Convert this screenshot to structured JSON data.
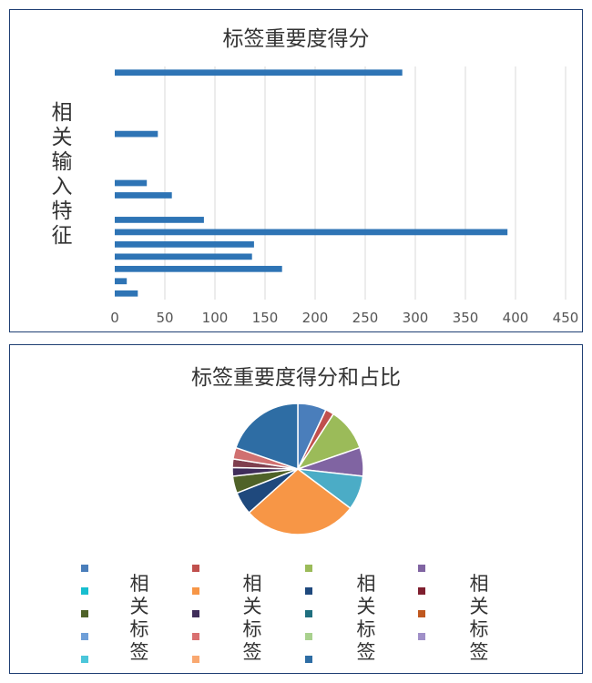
{
  "chart_data": [
    {
      "type": "bar",
      "orientation": "horizontal",
      "title": "标签重要度得分",
      "ylabel_chars": [
        "相",
        "关",
        "输",
        "入",
        "特",
        "征"
      ],
      "xlabel": "",
      "xlim": [
        0,
        450
      ],
      "xticks": [
        0,
        50,
        100,
        150,
        200,
        250,
        300,
        350,
        400,
        450
      ],
      "grid": true,
      "values": [
        287,
        0,
        0,
        0,
        0,
        43,
        0,
        0,
        0,
        32,
        57,
        0,
        89,
        392,
        139,
        137,
        167,
        12,
        23
      ]
    },
    {
      "type": "pie",
      "title": "标签重要度得分和占比",
      "values": [
        10,
        3,
        15,
        10,
        12,
        40,
        8,
        6,
        3,
        3,
        4,
        28
      ],
      "colors": [
        "#4a7ebb",
        "#c0504d",
        "#9bbb59",
        "#8064a2",
        "#4bacc6",
        "#f79646",
        "#1f497d",
        "#4f6228",
        "#3f2d5a",
        "#7f3f4f",
        "#d07070",
        "#2e6da4"
      ],
      "legend_label": "相关标签",
      "legend_colors": [
        [
          "#4a7ebb",
          "#c0504d",
          "#9bbb59",
          "#8064a2"
        ],
        [
          "#17becf",
          "#f79646",
          "#1f497d",
          "#7f1f2f"
        ],
        [
          "#4f6228",
          "#3f2d5a",
          "#1f6f7f",
          "#c0581f"
        ],
        [
          "#6f9fd8",
          "#d97070",
          "#a9d18e",
          "#a090c8"
        ],
        [
          "#4bc6da",
          "#f9a870",
          "#2e6da4"
        ]
      ]
    }
  ]
}
